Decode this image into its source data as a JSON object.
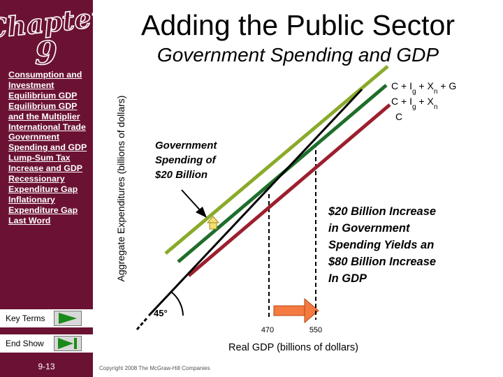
{
  "slide": {
    "title": "Adding the Public Sector",
    "subtitle": "Government Spending and GDP",
    "page_number": "9-13",
    "copyright": "Copyright 2008 The McGraw-Hill Companies",
    "accent_color": "#6b1234"
  },
  "logo": {
    "chapter": "Chapter",
    "number": "9"
  },
  "sidebar": {
    "nav_items": [
      {
        "label": "Consumption and Investment"
      },
      {
        "label": "Equilibrium GDP"
      },
      {
        "label": "Equilibrium GDP and the Multiplier"
      },
      {
        "label": "International Trade"
      },
      {
        "label": "Government Spending and GDP"
      },
      {
        "label": "Lump-Sum Tax Increase and GDP"
      },
      {
        "label": "Recessionary Expenditure Gap"
      },
      {
        "label": "Inflationary Expenditure Gap"
      },
      {
        "label": "Last Word"
      }
    ],
    "key_terms_label": "Key Terms",
    "end_show_label": "End Show",
    "key_terms_icon": "play-triangle-icon",
    "end_show_icon": "end-show-icon"
  },
  "chart_data": {
    "type": "line",
    "xlabel": "Real GDP (billions of dollars)",
    "ylabel": "Aggregate Expenditures (billions of dollars)",
    "ticks": [
      {
        "label": "470",
        "value": 470
      },
      {
        "label": "550",
        "value": 550
      }
    ],
    "angle_label": "45°",
    "series": [
      {
        "name": "C + Ig + Xn + G",
        "color": "#8aaa2a"
      },
      {
        "name": "C + Ig + Xn",
        "color": "#1e6e2a"
      },
      {
        "name": "C",
        "color": "#9c1f2e"
      },
      {
        "color": "#000000"
      }
    ],
    "legend_parts": [
      [
        {
          "t": "C + I"
        },
        {
          "t": "g",
          "sub": true
        },
        {
          "t": " + X"
        },
        {
          "t": "n",
          "sub": true
        },
        {
          "t": " + G"
        }
      ],
      [
        {
          "t": "C + I"
        },
        {
          "t": "g",
          "sub": true
        },
        {
          "t": " + X"
        },
        {
          "t": "n",
          "sub": true
        }
      ],
      [
        {
          "t": "C"
        }
      ]
    ],
    "annotations": {
      "gov_spending": [
        "Government",
        "Spending of",
        "$20 Billion"
      ],
      "increase": [
        "$20 Billion Increase",
        "in Government",
        "Spending Yields an",
        "$80 Billion Increase",
        "In GDP"
      ]
    }
  }
}
